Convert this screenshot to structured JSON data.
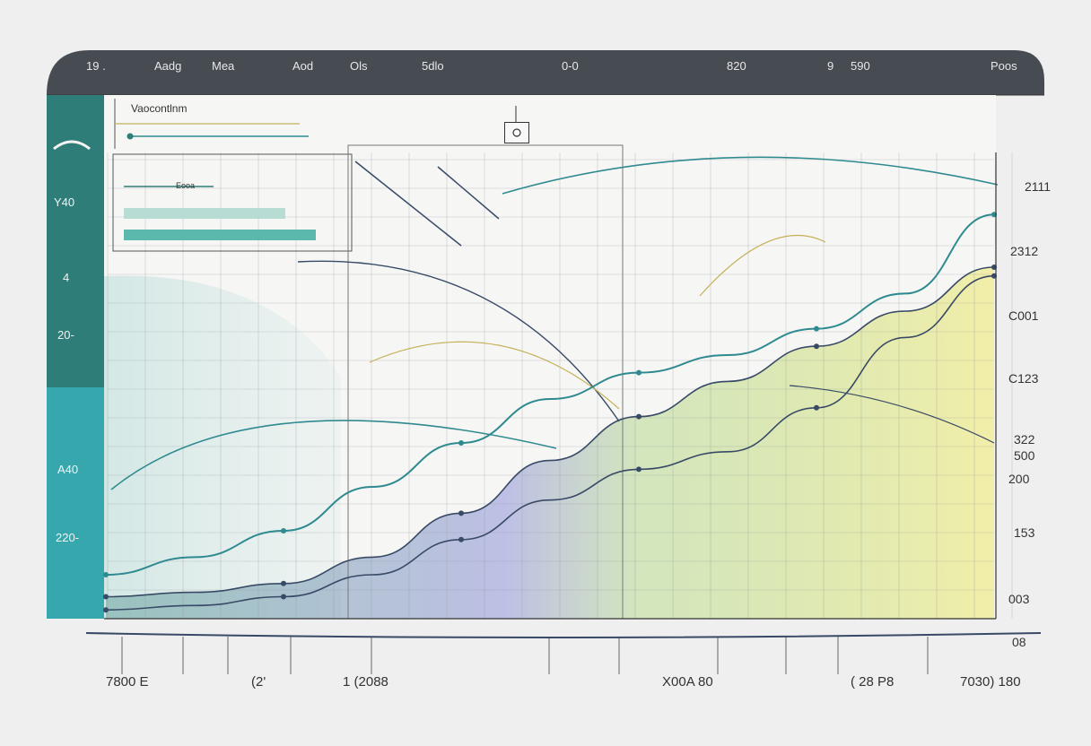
{
  "colors": {
    "header_bar": "#474b52",
    "left_panel": "#2f7d78",
    "left_panel_light": "#36a8ad",
    "series_line_1": "#2f8a90",
    "series_line_2": "#384a66",
    "accent_gold": "#c6b05a",
    "fill_green": "#b7d990",
    "fill_yellow": "#f0ec96",
    "fill_blue": "#aab2e0",
    "grid": "#8a8f96"
  },
  "header": {
    "labels": [
      "19 .",
      "Aadg",
      "Mea",
      "Aod",
      "Ols",
      "5dlo",
      "0-0",
      "820",
      "9",
      "590",
      "Poos"
    ]
  },
  "left_axis": {
    "labels": [
      "Y40",
      "4",
      "20-",
      "A40",
      "220-"
    ]
  },
  "right_axis": {
    "labels": [
      "2111",
      "2312",
      "C001",
      "C123",
      "322",
      "500",
      "200",
      "153",
      "003",
      "08"
    ]
  },
  "bottom_axis": {
    "labels": [
      "7800 E",
      "(2'",
      "1 (2088",
      "X00A 80",
      "( 28 P8",
      "7030) 180"
    ]
  },
  "legend": {
    "title": "Vaocontlnm",
    "sublabel": "Eooa"
  },
  "icons": {
    "top_marker": "pin-icon"
  },
  "chart_data": {
    "type": "line",
    "title": "",
    "xlabel": "",
    "ylabel": "",
    "grid": true,
    "legend_position": "top-left",
    "x": [
      0,
      1,
      2,
      3,
      4,
      5,
      6,
      7,
      8,
      9,
      10
    ],
    "ylim": [
      0,
      100
    ],
    "series": [
      {
        "values": [
          5,
          6,
          8,
          14,
          24,
          36,
          46,
          54,
          62,
          70,
          80
        ]
      },
      {
        "values": [
          10,
          14,
          20,
          30,
          40,
          50,
          56,
          60,
          66,
          74,
          92
        ]
      },
      {
        "values": [
          2,
          3,
          5,
          10,
          18,
          27,
          34,
          38,
          48,
          64,
          78
        ]
      }
    ]
  }
}
